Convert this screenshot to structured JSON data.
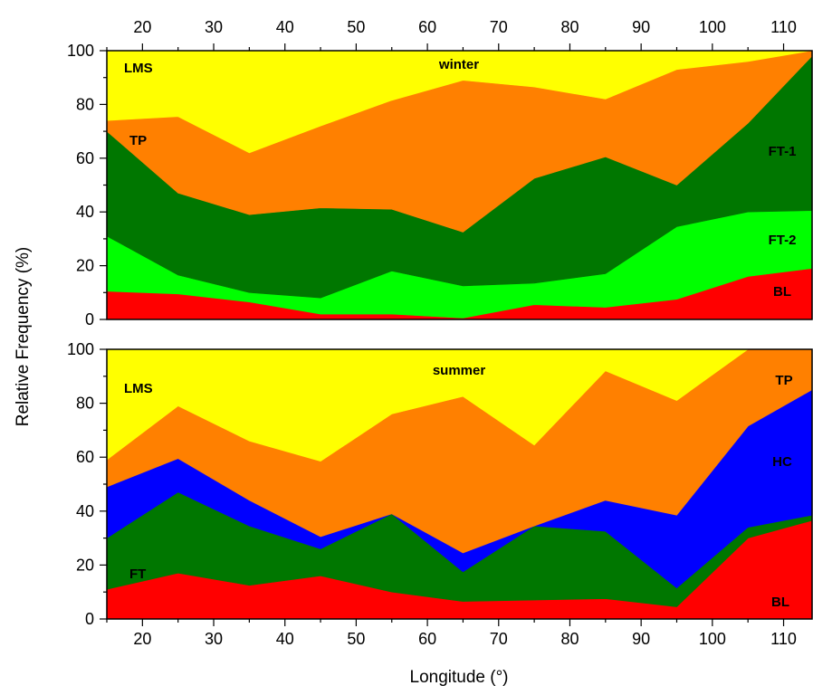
{
  "chart_data": {
    "type": "area",
    "stacked": true,
    "ylabel": "Relative Frequency  (%)",
    "xlabel": "Longitude (°)",
    "xlim": [
      15,
      114
    ],
    "ylim": [
      0,
      100
    ],
    "x_ticks": [
      20,
      30,
      40,
      50,
      60,
      70,
      80,
      90,
      100,
      110
    ],
    "y_ticks": [
      0,
      20,
      40,
      60,
      80,
      100
    ],
    "x": [
      15,
      25,
      35,
      45,
      55,
      65,
      75,
      85,
      95,
      105,
      114
    ],
    "panels": [
      {
        "title": "winter",
        "series": [
          {
            "name": "BL",
            "color": "#ff0000",
            "values": [
              10.5,
              9.5,
              6.5,
              2,
              2,
              0.5,
              5.5,
              4.5,
              7.5,
              16,
              19
            ]
          },
          {
            "name": "FT-2",
            "color": "#00ff00",
            "values": [
              20.5,
              7,
              3.5,
              6,
              16,
              12,
              8,
              12.5,
              27,
              24,
              21.5
            ]
          },
          {
            "name": "FT-1",
            "color": "#007700",
            "values": [
              39,
              30.5,
              29,
              33.5,
              23,
              20,
              39,
              43.5,
              15.5,
              33,
              57.5
            ]
          },
          {
            "name": "TP",
            "color": "#ff8000",
            "values": [
              4,
              28.5,
              23,
              30.5,
              40.5,
              56.5,
              34,
              21.5,
              43,
              23,
              2
            ]
          },
          {
            "name": "LMS",
            "color": "#ffff00",
            "values": [
              26,
              24.5,
              38,
              28,
              18.5,
              11,
              13.5,
              18,
              7,
              4,
              0
            ]
          }
        ]
      },
      {
        "title": "summer",
        "series": [
          {
            "name": "BL",
            "color": "#ff0000",
            "values": [
              11,
              17,
              12.5,
              16,
              10,
              6.5,
              7,
              7.5,
              4.5,
              30,
              36.5
            ]
          },
          {
            "name": "FT",
            "color": "#007700",
            "values": [
              19,
              30,
              22,
              10,
              29,
              11,
              27.5,
              25,
              7,
              4,
              2
            ]
          },
          {
            "name": "HC",
            "color": "#0000ff",
            "values": [
              19,
              12.5,
              9.5,
              4.5,
              0,
              7,
              0,
              11.5,
              27,
              37.5,
              46.5
            ]
          },
          {
            "name": "TP",
            "color": "#ff8000",
            "values": [
              10,
              19.5,
              22,
              28,
              37,
              58,
              30,
              48,
              42.5,
              28.5,
              15
            ]
          },
          {
            "name": "LMS",
            "color": "#ffff00",
            "values": [
              41,
              21,
              34,
              41.5,
              24,
              17.5,
              35.5,
              8,
              19,
              0,
              0
            ]
          }
        ]
      }
    ]
  }
}
